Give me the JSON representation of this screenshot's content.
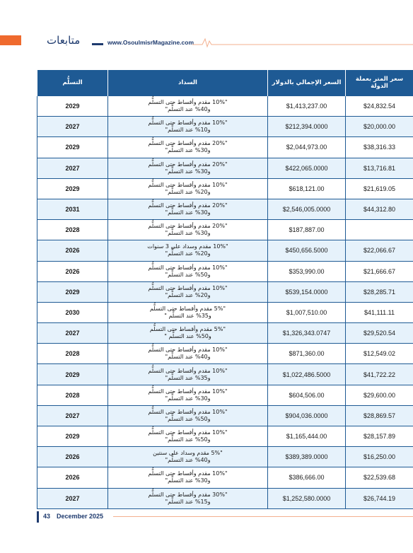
{
  "header": {
    "section_title": "متابعات",
    "website": "www.OsoulmisrMagazine.com"
  },
  "table": {
    "headers": {
      "price_per_meter": "سعر المتر بعملة الدولة",
      "total_usd": "السعر الإجمالي بالدولار",
      "payment": "السداد",
      "delivery": "التسلُّم"
    },
    "rows": [
      {
        "price_per_meter": "$24,832.54",
        "total_usd": "$1,413,237.00",
        "payment_l1": "\"10% مقدم وأقساط حتى التسلُّم",
        "payment_l2": "و40% عند التسلُّم\"",
        "delivery": "2029"
      },
      {
        "price_per_meter": "$20,000.00",
        "total_usd": "$212,394.0000",
        "payment_l1": "\"10% مقدم وأقساط حتى التسلُّم",
        "payment_l2": "و10% عند التسلُّم\"",
        "delivery": "2027"
      },
      {
        "price_per_meter": "$38,316.33",
        "total_usd": "$2,044,973.00",
        "payment_l1": "\"20% مقدم وأقساط حتى التسلُّم",
        "payment_l2": "و30% عند التسلُّم\"",
        "delivery": "2029"
      },
      {
        "price_per_meter": "$13,716.81",
        "total_usd": "$422,065.0000",
        "payment_l1": "\"20% مقدم وأقساط حتى التسلُّم",
        "payment_l2": "و30% عند التسلُّم\"",
        "delivery": "2027"
      },
      {
        "price_per_meter": "$21,619.05",
        "total_usd": "$618,121.00",
        "payment_l1": "\"10% مقدم وأقساط حتى التسلُّم",
        "payment_l2": "و20% عند التسلُّم\"",
        "delivery": "2029"
      },
      {
        "price_per_meter": "$44,312.80",
        "total_usd": "$2,546,005.0000",
        "payment_l1": "\"20% مقدم وأقساط حتى التسلُّم",
        "payment_l2": "و30% عند التسلُّم\"",
        "delivery": "2031"
      },
      {
        "price_per_meter": "",
        "total_usd": "$187,887.00",
        "payment_l1": "\"20% مقدم وأقساط حتى التسلُّم",
        "payment_l2": "و30% عند التسلُّم\"",
        "delivery": "2028"
      },
      {
        "price_per_meter": "$22,066.67",
        "total_usd": "$450,656.5000",
        "payment_l1": "\"10% مقدم وسداد على 3 سنوات",
        "payment_l2": "و20% عند التسلُّم\"",
        "delivery": "2026"
      },
      {
        "price_per_meter": "$21,666.67",
        "total_usd": "$353,990.00",
        "payment_l1": "\"10% مقدم وأقساط حتى التسلُّم",
        "payment_l2": "و50% عند التسلُّم\"",
        "delivery": "2026"
      },
      {
        "price_per_meter": "$28,285.71",
        "total_usd": "$539,154.0000",
        "payment_l1": "\"10% مقدم وأقساط حتى التسلُّم",
        "payment_l2": "و20% عند التسلُّم\"",
        "delivery": "2029"
      },
      {
        "price_per_meter": "$41,111.11",
        "total_usd": "$1,007,510.00",
        "payment_l1": "\"5% مقدم وأقساط حتى التسلُّم",
        "payment_l2": "و35% عند التسلُّم \"",
        "delivery": "2030"
      },
      {
        "price_per_meter": "$29,520.54",
        "total_usd": "$1,326,343.0747",
        "payment_l1": "\"5% مقدم وأقساط حتى التسلُّم",
        "payment_l2": "و50% عند التسلُّم \"",
        "delivery": "2027"
      },
      {
        "price_per_meter": "$12,549.02",
        "total_usd": "$871,360.00",
        "payment_l1": "\"10% مقدم وأقساط حتى التسلُّم",
        "payment_l2": "و40% عند التسلُّم\"",
        "delivery": "2028"
      },
      {
        "price_per_meter": "$41,722.22",
        "total_usd": "$1,022,486.5000",
        "payment_l1": "\"10% مقدم وأقساط حتى التسلُّم",
        "payment_l2": "و35% عند التسلُّم\"",
        "delivery": "2029"
      },
      {
        "price_per_meter": "$29,600.00",
        "total_usd": "$604,506.00",
        "payment_l1": "\"10% مقدم وأقساط حتى التسلُّم",
        "payment_l2": "و30% عند التسلُّم\"",
        "delivery": "2028"
      },
      {
        "price_per_meter": "$28,869.57",
        "total_usd": "$904,036.0000",
        "payment_l1": "\"10% مقدم وأقساط حتى التسلُّم",
        "payment_l2": "و50% عند التسلُّم\"",
        "delivery": "2027"
      },
      {
        "price_per_meter": "$28,157.89",
        "total_usd": "$1,165,444.00",
        "payment_l1": "\"10% مقدم وأقساط حتى التسلُّم",
        "payment_l2": "و50% عند التسلُّم\"",
        "delivery": "2029"
      },
      {
        "price_per_meter": "$16,250.00",
        "total_usd": "$389,389.0000",
        "payment_l1": "\"5% مقدم وسداد على سنتين",
        "payment_l2": "و40% عند التسلُّم\"",
        "delivery": "2026"
      },
      {
        "price_per_meter": "$22,539.68",
        "total_usd": "$386,666.00",
        "payment_l1": "\"10% مقدم وأقساط حتى التسلُّم",
        "payment_l2": "و30% عند التسلُّم\"",
        "delivery": "2026"
      },
      {
        "price_per_meter": "$26,744.19",
        "total_usd": "$1,252,580.0000",
        "payment_l1": "\"30% مقدم وأقساط حتى التسلُّم",
        "payment_l2": "و15% عند التسلُّم\"",
        "delivery": "2027"
      }
    ]
  },
  "footer": {
    "page_number": "43",
    "issue_date": "December 2025"
  },
  "colors": {
    "header_blue": "#1e5a94",
    "accent_orange": "#ef6a2e",
    "row_alt": "#e6f2fb"
  }
}
